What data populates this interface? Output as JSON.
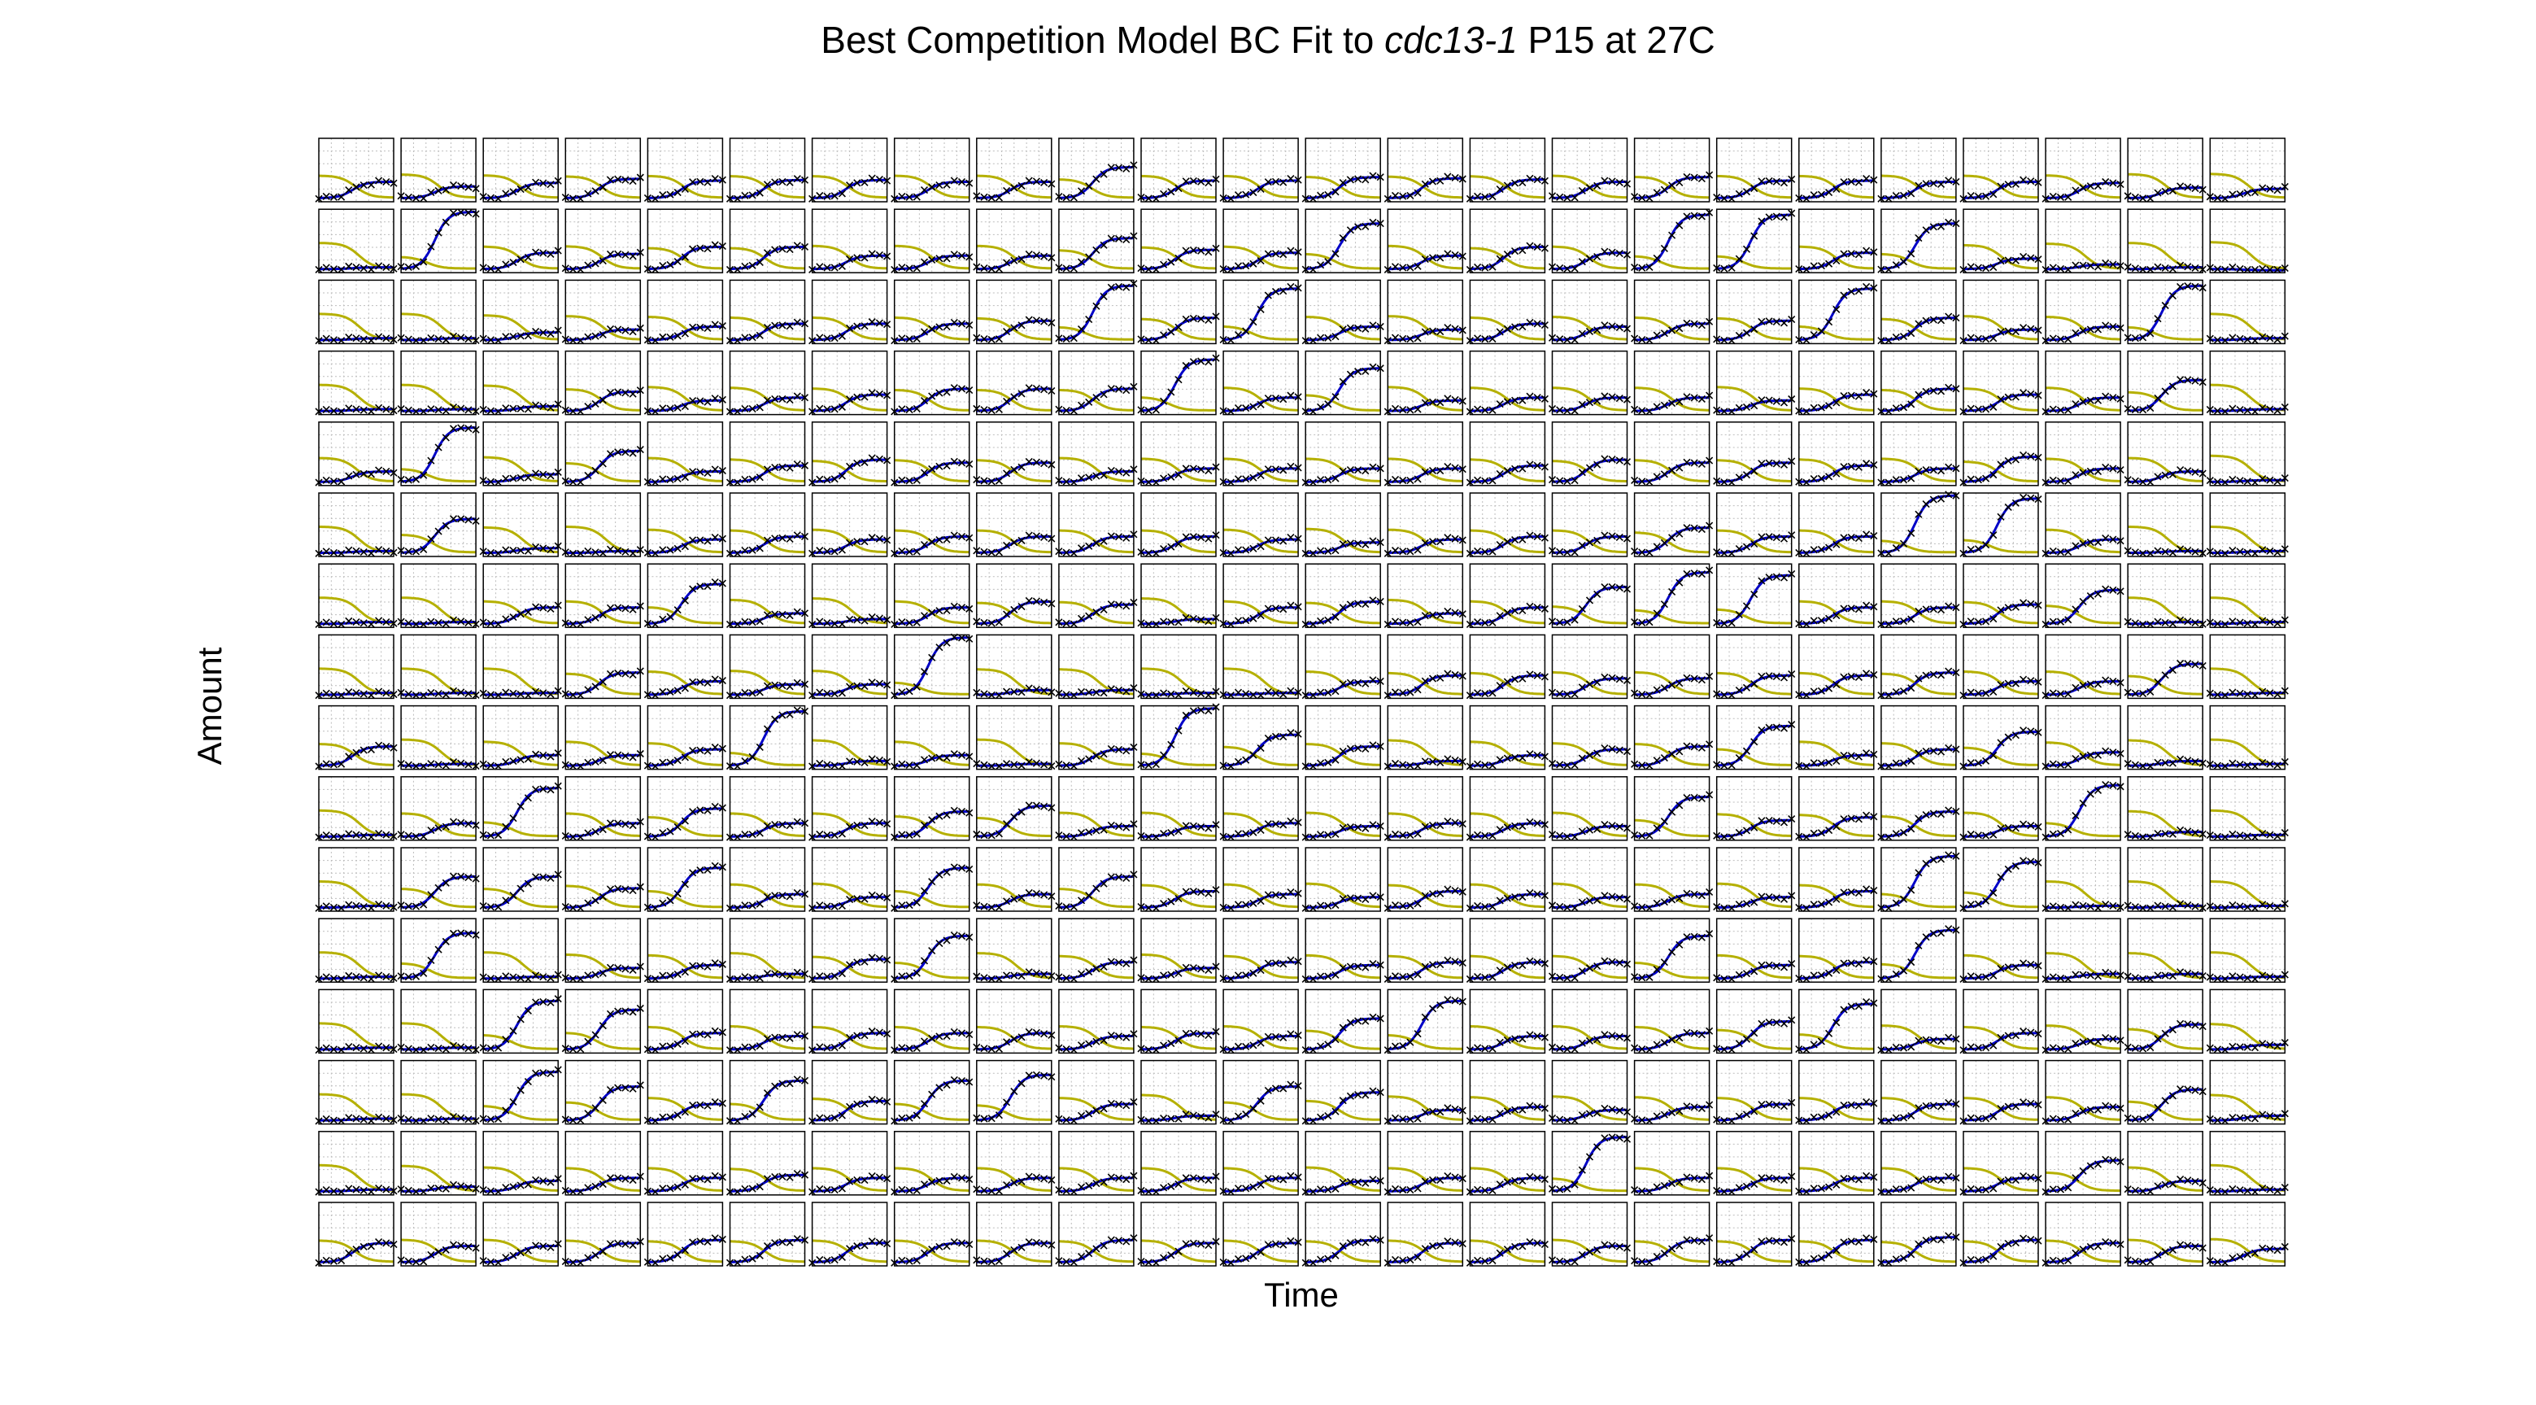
{
  "chart_data": {
    "type": "line",
    "title_prefix": "Best Competition Model BC Fit to ",
    "title_strain": "cdc13-1",
    "title_suffix": " P15 at 27C",
    "xlabel": "Time",
    "ylabel": "Amount",
    "rows": 16,
    "cols": 24,
    "x": [
      0,
      1,
      2,
      3,
      4,
      5,
      6,
      7,
      8,
      9,
      10
    ],
    "ylim": [
      0,
      1
    ],
    "grid": true,
    "series_styles": [
      {
        "role": "observed",
        "marker": "x",
        "color": "#000000"
      },
      {
        "role": "fitted",
        "color": "#0000c8"
      },
      {
        "role": "competitor",
        "color": "#b5b000"
      }
    ],
    "fitted_final": [
      [
        0.3,
        0.22,
        0.28,
        0.35,
        0.32,
        0.33,
        0.33,
        0.3,
        0.3,
        0.55,
        0.32,
        0.32,
        0.38,
        0.36,
        0.34,
        0.3,
        0.38,
        0.32,
        0.32,
        0.3,
        0.3,
        0.28,
        0.2,
        0.18
      ],
      [
        0.05,
        1.0,
        0.3,
        0.28,
        0.4,
        0.4,
        0.25,
        0.25,
        0.25,
        0.55,
        0.35,
        0.3,
        0.8,
        0.25,
        0.4,
        0.3,
        0.95,
        0.95,
        0.3,
        0.8,
        0.2,
        0.1,
        0.05,
        0.0
      ],
      [
        0.05,
        0.05,
        0.15,
        0.2,
        0.25,
        0.3,
        0.3,
        0.3,
        0.35,
        0.95,
        0.4,
        0.9,
        0.25,
        0.2,
        0.3,
        0.25,
        0.3,
        0.35,
        0.9,
        0.4,
        0.2,
        0.25,
        0.95,
        0.05
      ],
      [
        0.05,
        0.05,
        0.1,
        0.35,
        0.2,
        0.25,
        0.3,
        0.4,
        0.4,
        0.4,
        0.9,
        0.25,
        0.75,
        0.2,
        0.25,
        0.25,
        0.25,
        0.2,
        0.3,
        0.4,
        0.3,
        0.25,
        0.55,
        0.05
      ],
      [
        0.2,
        0.95,
        0.15,
        0.55,
        0.2,
        0.3,
        0.4,
        0.35,
        0.35,
        0.2,
        0.25,
        0.25,
        0.25,
        0.25,
        0.3,
        0.4,
        0.35,
        0.35,
        0.3,
        0.25,
        0.45,
        0.25,
        0.2,
        0.05
      ],
      [
        0.05,
        0.6,
        0.1,
        0.05,
        0.25,
        0.3,
        0.25,
        0.3,
        0.3,
        0.3,
        0.3,
        0.25,
        0.2,
        0.25,
        0.3,
        0.3,
        0.45,
        0.3,
        0.3,
        1.0,
        0.95,
        0.25,
        0.05,
        0.05
      ],
      [
        0.05,
        0.05,
        0.3,
        0.3,
        0.7,
        0.2,
        0.1,
        0.3,
        0.4,
        0.35,
        0.1,
        0.3,
        0.4,
        0.2,
        0.3,
        0.65,
        0.9,
        0.85,
        0.3,
        0.3,
        0.35,
        0.6,
        0.05,
        0.05
      ],
      [
        0.05,
        0.05,
        0.05,
        0.4,
        0.25,
        0.2,
        0.2,
        1.0,
        0.1,
        0.1,
        0.05,
        0.05,
        0.25,
        0.35,
        0.35,
        0.3,
        0.3,
        0.35,
        0.35,
        0.4,
        0.25,
        0.25,
        0.55,
        0.05
      ],
      [
        0.35,
        0.05,
        0.2,
        0.2,
        0.3,
        0.95,
        0.1,
        0.2,
        0.05,
        0.3,
        1.0,
        0.55,
        0.35,
        0.1,
        0.2,
        0.3,
        0.35,
        0.7,
        0.2,
        0.3,
        0.6,
        0.25,
        0.1,
        0.05
      ],
      [
        0.05,
        0.25,
        0.85,
        0.25,
        0.5,
        0.25,
        0.25,
        0.45,
        0.55,
        0.2,
        0.2,
        0.25,
        0.2,
        0.25,
        0.25,
        0.2,
        0.7,
        0.3,
        0.35,
        0.45,
        0.2,
        0.9,
        0.1,
        0.05
      ],
      [
        0.05,
        0.55,
        0.55,
        0.35,
        0.7,
        0.25,
        0.2,
        0.7,
        0.25,
        0.55,
        0.3,
        0.25,
        0.2,
        0.3,
        0.25,
        0.2,
        0.25,
        0.2,
        0.3,
        0.9,
        0.8,
        0.05,
        0.05,
        0.05
      ],
      [
        0.05,
        0.8,
        0.05,
        0.2,
        0.25,
        0.1,
        0.35,
        0.75,
        0.1,
        0.3,
        0.2,
        0.3,
        0.25,
        0.3,
        0.3,
        0.3,
        0.75,
        0.25,
        0.3,
        0.85,
        0.25,
        0.1,
        0.1,
        0.05
      ],
      [
        0.05,
        0.05,
        0.85,
        0.7,
        0.3,
        0.25,
        0.3,
        0.3,
        0.3,
        0.25,
        0.3,
        0.25,
        0.55,
        0.85,
        0.25,
        0.25,
        0.3,
        0.5,
        0.8,
        0.2,
        0.3,
        0.2,
        0.45,
        0.1
      ],
      [
        0.05,
        0.05,
        0.85,
        0.6,
        0.3,
        0.7,
        0.35,
        0.7,
        0.8,
        0.3,
        0.1,
        0.6,
        0.5,
        0.2,
        0.25,
        0.2,
        0.25,
        0.3,
        0.3,
        0.3,
        0.3,
        0.25,
        0.55,
        0.1
      ],
      [
        0.05,
        0.1,
        0.2,
        0.25,
        0.25,
        0.3,
        0.25,
        0.25,
        0.25,
        0.25,
        0.25,
        0.25,
        0.2,
        0.25,
        0.25,
        0.95,
        0.25,
        0.25,
        0.25,
        0.25,
        0.25,
        0.55,
        0.2,
        0.05
      ],
      [
        0.35,
        0.3,
        0.3,
        0.35,
        0.4,
        0.4,
        0.35,
        0.35,
        0.35,
        0.4,
        0.35,
        0.35,
        0.4,
        0.35,
        0.35,
        0.3,
        0.4,
        0.4,
        0.4,
        0.45,
        0.4,
        0.35,
        0.3,
        0.25
      ]
    ]
  }
}
